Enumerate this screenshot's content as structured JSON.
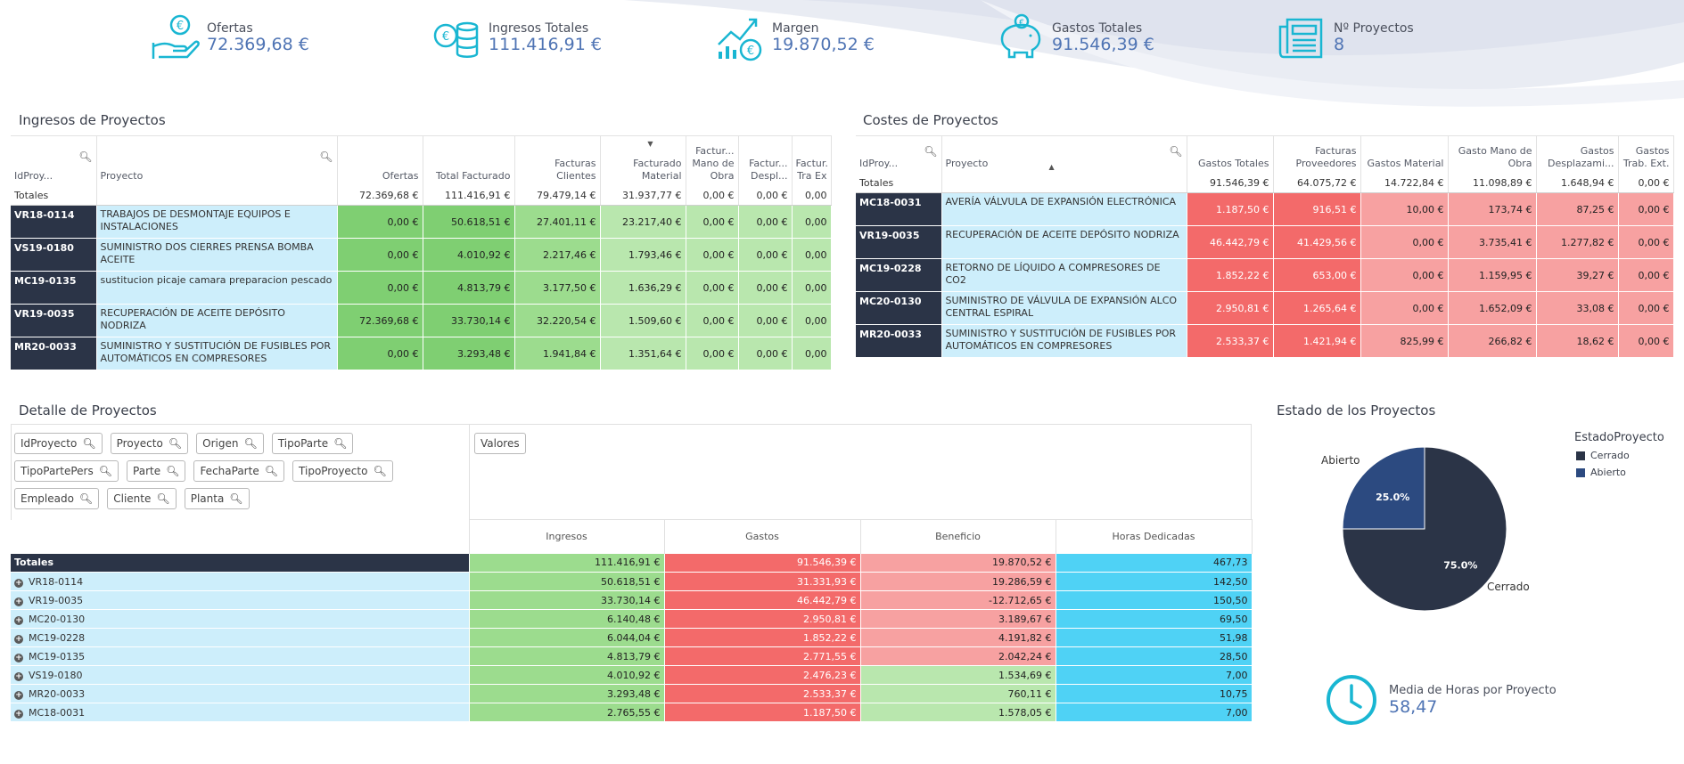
{
  "kpis": [
    {
      "label": "Ofertas",
      "value": "72.369,68 €",
      "icon": "hand-coin-icon"
    },
    {
      "label": "Ingresos Totales",
      "value": "111.416,91 €",
      "icon": "coins-stack-icon"
    },
    {
      "label": "Margen",
      "value": "19.870,52 €",
      "icon": "growth-chart-icon"
    },
    {
      "label": "Gastos Totales",
      "value": "91.546,39 €",
      "icon": "piggy-bank-icon"
    },
    {
      "label": "Nº Proyectos",
      "value": "8",
      "icon": "newspaper-icon"
    }
  ],
  "ingresos": {
    "title": "Ingresos de Proyectos",
    "headers": [
      "IdProy...",
      "Proyecto",
      "Ofertas",
      "Total Facturado",
      "Facturas Clientes",
      "Facturado Material",
      "Factur... Mano de Obra",
      "Factur... Despl...",
      "Factur. Tra Ex"
    ],
    "totals_label": "Totales",
    "totals": [
      "72.369,68 €",
      "111.416,91 €",
      "79.479,14 €",
      "31.937,77 €",
      "0,00 €",
      "0,00 €",
      "0,00"
    ],
    "rows": [
      {
        "id": "VR18-0114",
        "project": "TRABAJOS DE DESMONTAJE EQUIPOS E INSTALACIONES",
        "values": [
          "0,00 €",
          "50.618,51 €",
          "27.401,11 €",
          "23.217,40 €",
          "0,00 €",
          "0,00 €",
          "0,00"
        ]
      },
      {
        "id": "VS19-0180",
        "project": "SUMINISTRO DOS CIERRES PRENSA BOMBA ACEITE",
        "values": [
          "0,00 €",
          "4.010,92 €",
          "2.217,46 €",
          "1.793,46 €",
          "0,00 €",
          "0,00 €",
          "0,00"
        ]
      },
      {
        "id": "MC19-0135",
        "project": "sustitucion picaje camara preparacion pescado",
        "values": [
          "0,00 €",
          "4.813,79 €",
          "3.177,50 €",
          "1.636,29 €",
          "0,00 €",
          "0,00 €",
          "0,00"
        ]
      },
      {
        "id": "VR19-0035",
        "project": "RECUPERACIÓN DE ACEITE DEPÓSITO NODRIZA",
        "values": [
          "72.369,68 €",
          "33.730,14 €",
          "32.220,54 €",
          "1.509,60 €",
          "0,00 €",
          "0,00 €",
          "0,00"
        ]
      },
      {
        "id": "MR20-0033",
        "project": "SUMINISTRO Y SUSTITUCIÓN DE FUSIBLES POR AUTOMÁTICOS EN COMPRESORES",
        "values": [
          "0,00 €",
          "3.293,48 €",
          "1.941,84 €",
          "1.351,64 €",
          "0,00 €",
          "0,00 €",
          "0,00"
        ]
      }
    ]
  },
  "costes": {
    "title": "Costes de Proyectos",
    "headers": [
      "IdProy...",
      "Proyecto",
      "Gastos Totales",
      "Facturas Proveedores",
      "Gastos Material",
      "Gasto Mano de Obra",
      "Gastos Desplazami...",
      "Gastos Trab. Ext."
    ],
    "totals_label": "Totales",
    "totals": [
      "91.546,39 €",
      "64.075,72 €",
      "14.722,84 €",
      "11.098,89 €",
      "1.648,94 €",
      "0,00 €"
    ],
    "rows": [
      {
        "id": "MC18-0031",
        "project": "AVERÍA VÁLVULA DE EXPANSIÓN ELECTRÓNICA",
        "values": [
          "1.187,50 €",
          "916,51 €",
          "10,00 €",
          "173,74 €",
          "87,25 €",
          "0,00 €"
        ]
      },
      {
        "id": "VR19-0035",
        "project": "RECUPERACIÓN DE ACEITE DEPÓSITO NODRIZA",
        "values": [
          "46.442,79 €",
          "41.429,56 €",
          "0,00 €",
          "3.735,41 €",
          "1.277,82 €",
          "0,00 €"
        ]
      },
      {
        "id": "MC19-0228",
        "project": "RETORNO DE LÍQUIDO A COMPRESORES DE CO2",
        "values": [
          "1.852,22 €",
          "653,00 €",
          "0,00 €",
          "1.159,95 €",
          "39,27 €",
          "0,00 €"
        ]
      },
      {
        "id": "MC20-0130",
        "project": "SUMINISTRO DE VÁLVULA DE EXPANSIÓN ALCO CENTRAL ESPIRAL",
        "values": [
          "2.950,81 €",
          "1.265,64 €",
          "0,00 €",
          "1.652,09 €",
          "33,08 €",
          "0,00 €"
        ]
      },
      {
        "id": "MR20-0033",
        "project": "SUMINISTRO Y SUSTITUCIÓN DE FUSIBLES POR AUTOMÁTICOS EN COMPRESORES",
        "values": [
          "2.533,37 €",
          "1.421,94 €",
          "825,99 €",
          "266,82 €",
          "18,62 €",
          "0,00 €"
        ]
      }
    ]
  },
  "detalle": {
    "title": "Detalle de Proyectos",
    "chips": [
      "IdProyecto",
      "Proyecto",
      "Origen",
      "TipoParte",
      "TipoPartePers",
      "Parte",
      "FechaParte",
      "TipoProyecto",
      "Empleado",
      "Cliente",
      "Planta"
    ],
    "valores_label": "Valores",
    "headers": [
      "Ingresos",
      "Gastos",
      "Beneficio",
      "Horas Dedicadas"
    ],
    "totals_label": "Totales",
    "totals": [
      "111.416,91 €",
      "91.546,39 €",
      "19.870,52 €",
      "467,73"
    ],
    "rows": [
      {
        "id": "VR18-0114",
        "values": [
          "50.618,51 €",
          "31.331,93 €",
          "19.286,59 €",
          "142,50"
        ]
      },
      {
        "id": "VR19-0035",
        "values": [
          "33.730,14 €",
          "46.442,79 €",
          "-12.712,65 €",
          "150,50"
        ]
      },
      {
        "id": "MC20-0130",
        "values": [
          "6.140,48 €",
          "2.950,81 €",
          "3.189,67 €",
          "69,50"
        ]
      },
      {
        "id": "MC19-0228",
        "values": [
          "6.044,04 €",
          "1.852,22 €",
          "4.191,82 €",
          "51,98"
        ]
      },
      {
        "id": "MC19-0135",
        "values": [
          "4.813,79 €",
          "2.771,55 €",
          "2.042,24 €",
          "28,50"
        ]
      },
      {
        "id": "VS19-0180",
        "values": [
          "4.010,92 €",
          "2.476,23 €",
          "1.534,69 €",
          "7,00"
        ]
      },
      {
        "id": "MR20-0033",
        "values": [
          "3.293,48 €",
          "2.533,37 €",
          "760,11 €",
          "10,75"
        ]
      },
      {
        "id": "MC18-0031",
        "values": [
          "2.765,55 €",
          "1.187,50 €",
          "1.578,05 €",
          "7,00"
        ]
      }
    ]
  },
  "estado": {
    "title": "Estado de los Proyectos",
    "legend_title": "EstadoProyecto",
    "chart_data": {
      "type": "pie",
      "title": "",
      "slices": [
        {
          "label": "Cerrado",
          "value": 75.0,
          "pct_label": "75.0%",
          "color": "#2b3447"
        },
        {
          "label": "Abierto",
          "value": 25.0,
          "pct_label": "25.0%",
          "color": "#2c4a80"
        }
      ]
    }
  },
  "media": {
    "label": "Media de Horas por Proyecto",
    "value": "58,47",
    "icon": "clock-icon"
  }
}
